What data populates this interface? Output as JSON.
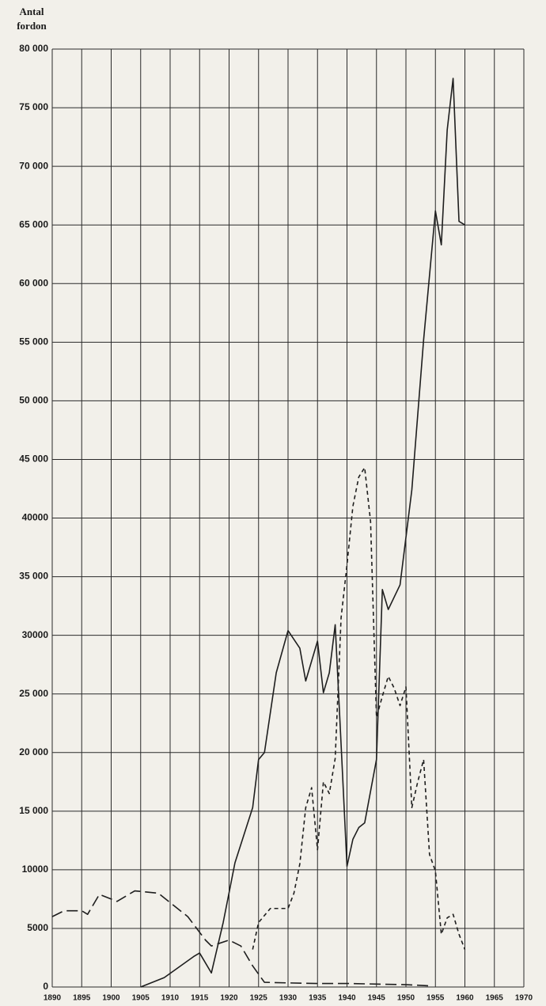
{
  "chart_data": {
    "type": "line",
    "y_label": [
      "Antal",
      "fordon"
    ],
    "xlim": [
      1890,
      1970
    ],
    "xticks": [
      1890,
      1895,
      1900,
      1905,
      1910,
      1915,
      1920,
      1925,
      1930,
      1935,
      1940,
      1945,
      1950,
      1955,
      1960,
      1965,
      1970
    ],
    "ylim": [
      0,
      80000
    ],
    "yticks": [
      0,
      5000,
      10000,
      {
        "value": 15000,
        "label": "15 000"
      },
      {
        "value": 20000,
        "label": "20 000"
      },
      {
        "value": 25000,
        "label": "25 000"
      },
      30000,
      {
        "value": 35000,
        "label": "35 000"
      },
      40000,
      {
        "value": 45000,
        "label": "45 000"
      },
      {
        "value": 50000,
        "label": "50 000"
      },
      {
        "value": 55000,
        "label": "55 000"
      },
      {
        "value": 60000,
        "label": "60 000"
      },
      {
        "value": 65000,
        "label": "65 000"
      },
      {
        "value": 70000,
        "label": "70 000"
      },
      {
        "value": 75000,
        "label": "75 000"
      },
      {
        "value": 80000,
        "label": "80 000"
      }
    ],
    "grid": true,
    "series": [
      {
        "color": "#1e1e1e",
        "dash": "solid",
        "x": [
          1905,
          1909,
          1914,
          1915,
          1917,
          1919,
          1921,
          1924,
          1925,
          1926,
          1928,
          1930,
          1932,
          1933,
          1935,
          1936,
          1937,
          1938,
          1939,
          1940,
          1941,
          1942,
          1943,
          1945,
          1946,
          1947,
          1949,
          1951,
          1953,
          1955,
          1956,
          1957,
          1958,
          1959,
          1960
        ],
        "values": [
          0,
          800,
          2600,
          2900,
          1200,
          5500,
          10600,
          15300,
          19400,
          20000,
          26800,
          30400,
          28900,
          26100,
          29500,
          25100,
          26800,
          30900,
          20700,
          10300,
          12600,
          13600,
          14000,
          19400,
          33900,
          32200,
          34300,
          42400,
          55200,
          66200,
          63300,
          73100,
          77500,
          65300,
          65000
        ]
      },
      {
        "color": "#1e1e1e",
        "dash": "long",
        "x": [
          1890,
          1892,
          1895,
          1896,
          1898,
          1901,
          1904,
          1908,
          1913,
          1916,
          1917,
          1920,
          1922,
          1924,
          1926,
          1930,
          1935,
          1940,
          1945,
          1950,
          1954
        ],
        "values": [
          6000,
          6500,
          6500,
          6200,
          7900,
          7300,
          8200,
          8000,
          6000,
          4000,
          3500,
          4000,
          3500,
          1800,
          400,
          350,
          300,
          300,
          250,
          200,
          100
        ]
      },
      {
        "color": "#1e1e1e",
        "dash": "short",
        "x": [
          1924,
          1925,
          1927,
          1930,
          1931,
          1932,
          1933,
          1934,
          1935,
          1936,
          1937,
          1938,
          1939,
          1940,
          1941,
          1942,
          1943,
          1944,
          1945,
          1946,
          1947,
          1948,
          1949,
          1950,
          1951,
          1952,
          1953,
          1954,
          1955,
          1956,
          1957,
          1958,
          1959,
          1960
        ],
        "values": [
          3200,
          5500,
          6700,
          6700,
          8000,
          10500,
          15300,
          17000,
          11700,
          17500,
          16500,
          19500,
          31500,
          36000,
          41000,
          43500,
          44300,
          39700,
          23000,
          24800,
          26500,
          25500,
          24000,
          25600,
          15300,
          17500,
          19400,
          11300,
          9900,
          4500,
          5900,
          6200,
          4500,
          3200
        ]
      }
    ]
  }
}
